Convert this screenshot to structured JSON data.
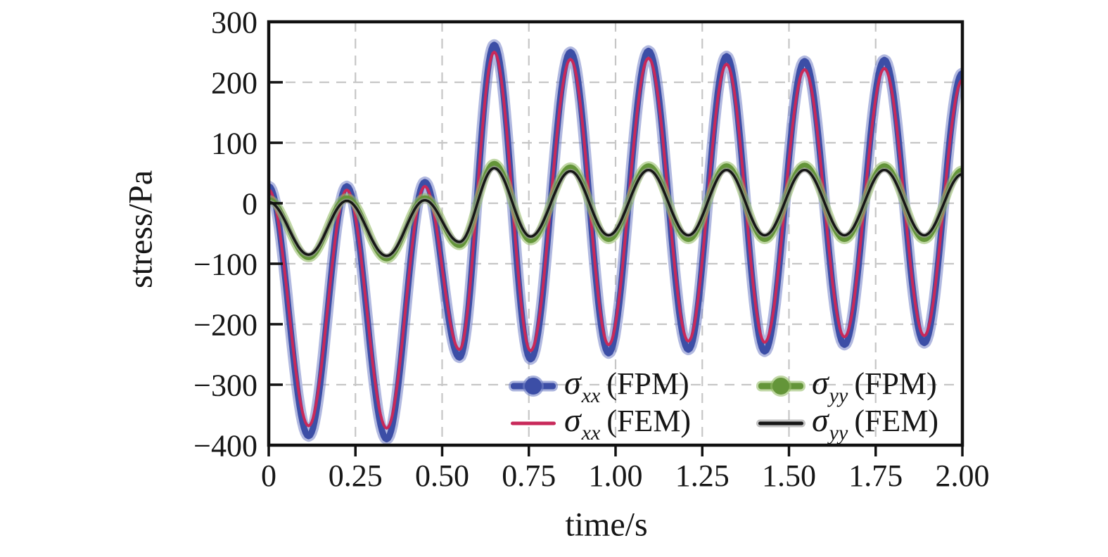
{
  "axes": {
    "x": {
      "label": "time/s",
      "ticks": [
        "0",
        "0.25",
        "0.50",
        "0.75",
        "1.00",
        "1.25",
        "1.50",
        "1.75",
        "2.00"
      ],
      "tick_values": [
        0,
        0.25,
        0.5,
        0.75,
        1.0,
        1.25,
        1.5,
        1.75,
        2.0
      ],
      "range": [
        0,
        2
      ]
    },
    "y": {
      "label": "stress/Pa",
      "ticks": [
        "300",
        "200",
        "100",
        "0",
        "−100",
        "−200",
        "−300",
        "−400"
      ],
      "tick_values": [
        300,
        200,
        100,
        0,
        -100,
        -200,
        -300,
        -400
      ],
      "range": [
        -400,
        300
      ]
    }
  },
  "legend": {
    "items": [
      {
        "sigma": "σ",
        "subscript": "xx",
        "method": "(FPM)",
        "series": "sigma-xx-fpm"
      },
      {
        "sigma": "σ",
        "subscript": "yy",
        "method": "(FPM)",
        "series": "sigma-yy-fpm"
      },
      {
        "sigma": "σ",
        "subscript": "xx",
        "method": "(FEM)",
        "series": "sigma-xx-fem"
      },
      {
        "sigma": "σ",
        "subscript": "yy",
        "method": "(FEM)",
        "series": "sigma-yy-fem"
      }
    ]
  },
  "chart_data": {
    "type": "line",
    "title": "",
    "xlabel": "time/s",
    "ylabel": "stress/Pa",
    "xlim": [
      0,
      2
    ],
    "ylim": [
      -400,
      300
    ],
    "grid": true,
    "grid_style": "dashed",
    "grid_x": [
      0.25,
      0.5,
      0.75,
      1.0,
      1.25,
      1.5,
      1.75
    ],
    "grid_y": [
      200,
      100,
      0,
      -100,
      -200,
      -300
    ],
    "legend_position": "inside-bottom-right",
    "x": [
      0,
      0.115,
      0.225,
      0.34,
      0.45,
      0.55,
      0.65,
      0.755,
      0.87,
      0.98,
      1.095,
      1.21,
      1.32,
      1.43,
      1.545,
      1.66,
      1.775,
      1.89,
      2.0
    ],
    "series": [
      {
        "id": "sigma-xx-fpm",
        "name": "σxx (FPM)",
        "color": "#3c4ea6",
        "halo_color": "#7280c6",
        "halo_opacity": 0.55,
        "width": 9,
        "halo_width": 16,
        "marker": true,
        "values": [
          28,
          -385,
          28,
          -390,
          35,
          -255,
          262,
          -258,
          250,
          -248,
          252,
          -242,
          243,
          -245,
          235,
          -234,
          237,
          -231,
          215
        ]
      },
      {
        "id": "sigma-xx-fem",
        "name": "σxx (FEM)",
        "color": "#c8295a",
        "width": 4,
        "marker": false,
        "values": [
          22,
          -368,
          22,
          -372,
          28,
          -242,
          250,
          -244,
          238,
          -234,
          240,
          -228,
          230,
          -230,
          221,
          -221,
          223,
          -219,
          204
        ]
      },
      {
        "id": "sigma-yy-fpm",
        "name": "σyy (FPM)",
        "color": "#649539",
        "halo_color": "#96bc69",
        "halo_opacity": 0.6,
        "width": 7,
        "halo_width": 13,
        "marker": true,
        "values": [
          6,
          -90,
          9,
          -92,
          9,
          -70,
          66,
          -62,
          60,
          -60,
          62,
          -60,
          62,
          -60,
          63,
          -60,
          62,
          -60,
          55
        ]
      },
      {
        "id": "sigma-yy-fem",
        "name": "σyy (FEM)",
        "color": "#161616",
        "halo_color": "#9a9a9a",
        "halo_opacity": 0.65,
        "width": 3.5,
        "halo_width": 7,
        "marker": false,
        "values": [
          2,
          -85,
          4,
          -87,
          5,
          -64,
          58,
          -55,
          53,
          -53,
          55,
          -53,
          55,
          -53,
          55,
          -53,
          55,
          -53,
          48
        ]
      }
    ]
  }
}
